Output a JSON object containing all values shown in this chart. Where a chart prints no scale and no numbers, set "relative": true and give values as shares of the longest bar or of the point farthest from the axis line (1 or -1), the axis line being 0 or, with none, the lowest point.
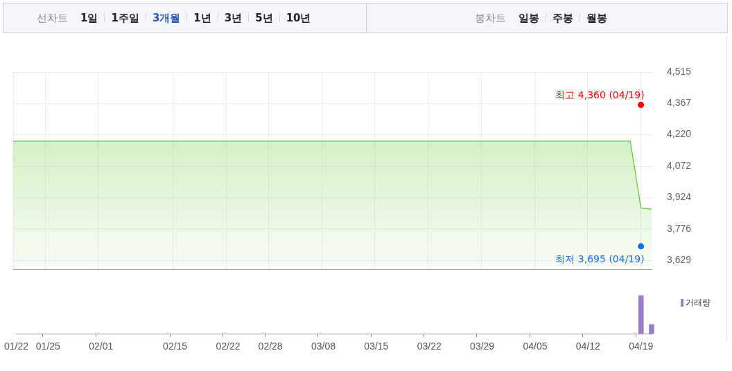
{
  "chart_data": [
    {
      "type": "other",
      "annotations": [
        "선차트",
        "1일",
        "1주일",
        "3개월",
        "1년",
        "3년",
        "5년",
        "10년",
        "봉차트",
        "일봉",
        "주봉",
        "월봉"
      ]
    },
    {
      "type": "area",
      "categories": [
        "01/22",
        null,
        null,
        "01/25",
        null,
        null,
        null,
        null,
        "02/01",
        null,
        null,
        null,
        null,
        null,
        null,
        "02/15",
        null,
        null,
        null,
        null,
        "02/22",
        null,
        null,
        null,
        "02/28",
        null,
        null,
        null,
        null,
        "03/08",
        null,
        null,
        null,
        null,
        "03/15",
        null,
        null,
        null,
        null,
        "03/22",
        null,
        null,
        null,
        null,
        "03/29",
        null,
        null,
        null,
        null,
        "04/05",
        null,
        null,
        null,
        null,
        "04/12",
        null,
        null,
        null,
        null,
        "04/19",
        null
      ],
      "series": [
        {
          "type": "area",
          "color": "#66cc33",
          "values": [
            4190,
            4190,
            4190,
            4190,
            4190,
            4190,
            4190,
            4190,
            4190,
            4190,
            4190,
            4190,
            4190,
            4190,
            4190,
            4190,
            4190,
            4190,
            4190,
            4190,
            4190,
            4190,
            4190,
            4190,
            4190,
            4190,
            4190,
            4190,
            4190,
            4190,
            4190,
            4190,
            4190,
            4190,
            4190,
            4190,
            4190,
            4190,
            4190,
            4190,
            4190,
            4190,
            4190,
            4190,
            4190,
            4190,
            4190,
            4190,
            4190,
            4190,
            4190,
            4190,
            4190,
            4190,
            4190,
            4190,
            4190,
            4190,
            4190,
            3875,
            3870
          ]
        },
        {
          "type": "scatter",
          "marker": "circle",
          "x": [
            "04/19",
            "04/19"
          ],
          "values": [
            4360,
            3695
          ],
          "colors": [
            "#ff0000",
            "#1a6fe0"
          ]
        }
      ],
      "ylim": [
        3585,
        4515
      ],
      "yticks": [
        {
          "value": 3629,
          "label": "3,629"
        },
        {
          "value": 3776,
          "label": "3,776"
        },
        {
          "value": 3924,
          "label": "3,924"
        },
        {
          "value": 4072,
          "label": "4,072"
        },
        {
          "value": 4220,
          "label": "4,220"
        },
        {
          "value": 4367,
          "label": "4,367"
        },
        {
          "value": 4515,
          "label": "4,515"
        }
      ],
      "grid": true,
      "tick_labels": "y",
      "marker": "none",
      "annotations": [
        {
          "text": "최고 4,360 (04/19)",
          "x": "04/19",
          "y": 4360
        },
        {
          "text": "최저 3,695 (04/19)",
          "x": "04/19",
          "y": 3695
        }
      ]
    },
    {
      "type": "bar",
      "categories": [
        "01/22",
        null,
        null,
        "01/25",
        null,
        null,
        null,
        null,
        "02/01",
        null,
        null,
        null,
        null,
        null,
        null,
        "02/15",
        null,
        null,
        null,
        null,
        "02/22",
        null,
        null,
        null,
        "02/28",
        null,
        null,
        null,
        null,
        "03/08",
        null,
        null,
        null,
        null,
        "03/15",
        null,
        null,
        null,
        null,
        "03/22",
        null,
        null,
        null,
        null,
        "03/29",
        null,
        null,
        null,
        null,
        "04/05",
        null,
        null,
        null,
        null,
        "04/12",
        null,
        null,
        null,
        null,
        "04/19",
        null
      ],
      "series": [
        {
          "name": "거래량",
          "color": "#9b7fc8",
          "values": [
            null,
            null,
            null,
            null,
            null,
            null,
            null,
            null,
            null,
            null,
            null,
            null,
            null,
            null,
            null,
            null,
            null,
            null,
            null,
            null,
            null,
            null,
            null,
            null,
            null,
            null,
            null,
            null,
            null,
            null,
            null,
            null,
            null,
            null,
            null,
            null,
            null,
            null,
            null,
            null,
            null,
            null,
            null,
            null,
            null,
            null,
            null,
            null,
            null,
            null,
            null,
            null,
            null,
            null,
            null,
            null,
            null,
            null,
            null,
            1,
            0.24
          ]
        }
      ],
      "relative": true,
      "tick_labels": "x",
      "legend": "top right",
      "grid": false
    }
  ]
}
